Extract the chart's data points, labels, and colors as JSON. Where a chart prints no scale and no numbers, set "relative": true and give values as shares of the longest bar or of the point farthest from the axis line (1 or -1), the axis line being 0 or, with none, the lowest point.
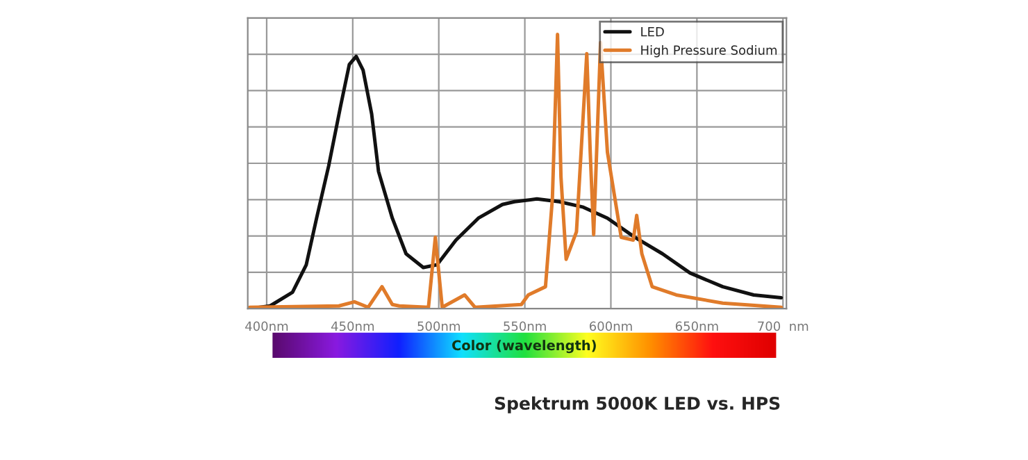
{
  "chart_data": {
    "type": "line",
    "relative": true,
    "xlabel": "Color (wavelength)",
    "xlim": [
      389,
      702
    ],
    "xticks": [
      {
        "value": 400,
        "label": "400nm"
      },
      {
        "value": 450,
        "label": "450nm"
      },
      {
        "value": 500,
        "label": "500nm"
      },
      {
        "value": 550,
        "label": "550nm"
      },
      {
        "value": 600,
        "label": "600nm"
      },
      {
        "value": 650,
        "label": "650nm"
      },
      {
        "value": 700,
        "label": "700  nm"
      }
    ],
    "tick_labels": "x",
    "grid": true,
    "legend": "top right",
    "marker": "none",
    "line_style": "solid",
    "series": [
      {
        "name": "LED",
        "color": "#111111",
        "x": [
          390,
          402,
          415,
          423,
          429,
          436,
          443,
          448,
          452,
          456,
          461,
          465,
          473,
          481,
          491,
          499,
          510,
          523,
          537,
          544,
          557,
          570,
          584,
          598,
          614,
          630,
          646,
          665,
          683,
          699
        ],
        "values": [
          0,
          0.01,
          0.06,
          0.16,
          0.33,
          0.52,
          0.74,
          0.89,
          0.92,
          0.87,
          0.71,
          0.5,
          0.33,
          0.2,
          0.15,
          0.16,
          0.25,
          0.33,
          0.38,
          0.39,
          0.4,
          0.39,
          0.37,
          0.33,
          0.26,
          0.2,
          0.13,
          0.08,
          0.05,
          0.04
        ]
      },
      {
        "name": "High Pressure Sodium",
        "color": "#e07b2a",
        "x": [
          390,
          442,
          451,
          459,
          467,
          473,
          477,
          494,
          498,
          502,
          515,
          521,
          548,
          552,
          562,
          566,
          569,
          571,
          574,
          580,
          586,
          588,
          590,
          594,
          598,
          606,
          613,
          615,
          618,
          624,
          638,
          665,
          699
        ],
        "values": [
          0.005,
          0.01,
          0.025,
          0.005,
          0.08,
          0.015,
          0.01,
          0.005,
          0.26,
          0.005,
          0.05,
          0.005,
          0.015,
          0.05,
          0.08,
          0.4,
          1,
          0.48,
          0.18,
          0.28,
          0.93,
          0.57,
          0.27,
          0.97,
          0.57,
          0.26,
          0.25,
          0.34,
          0.2,
          0.08,
          0.05,
          0.02,
          0.005
        ]
      }
    ],
    "annotations": [
      "Spektrum 5000K LED vs. HPS"
    ]
  }
}
